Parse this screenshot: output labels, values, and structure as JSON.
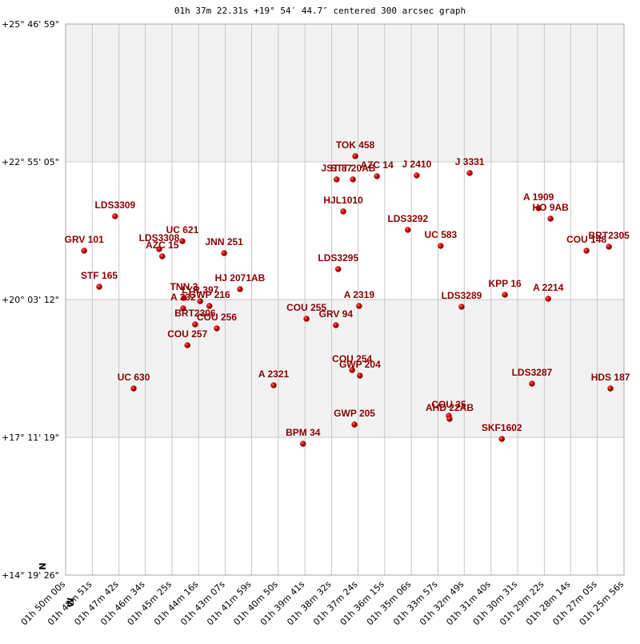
{
  "chart_data": {
    "type": "scatter",
    "title": "01h 37m 22.31s +19° 54′ 44.7″ centered 300 arcsec graph",
    "compass": [
      "N",
      "W"
    ],
    "color": "#c00000",
    "label_color": "#8b0000",
    "grid": true,
    "xlim": [
      6600,
      5156
    ],
    "ylim": [
      51566,
      92819
    ],
    "xticks": [
      {
        "value": 6600,
        "label": "01h 50m 00s"
      },
      {
        "value": 6531,
        "label": "01h 48m 51s"
      },
      {
        "value": 6462,
        "label": "01h 47m 42s"
      },
      {
        "value": 6394,
        "label": "01h 46m 34s"
      },
      {
        "value": 6325,
        "label": "01h 45m 25s"
      },
      {
        "value": 6256,
        "label": "01h 44m 16s"
      },
      {
        "value": 6187,
        "label": "01h 43m 07s"
      },
      {
        "value": 6119,
        "label": "01h 41m 59s"
      },
      {
        "value": 6050,
        "label": "01h 40m 50s"
      },
      {
        "value": 5981,
        "label": "01h 39m 41s"
      },
      {
        "value": 5912,
        "label": "01h 38m 32s"
      },
      {
        "value": 5844,
        "label": "01h 37m 24s"
      },
      {
        "value": 5775,
        "label": "01h 36m 15s"
      },
      {
        "value": 5706,
        "label": "01h 35m 06s"
      },
      {
        "value": 5637,
        "label": "01h 33m 57s"
      },
      {
        "value": 5569,
        "label": "01h 32m 49s"
      },
      {
        "value": 5500,
        "label": "01h 31m 40s"
      },
      {
        "value": 5431,
        "label": "01h 30m 31s"
      },
      {
        "value": 5362,
        "label": "01h 29m 22s"
      },
      {
        "value": 5294,
        "label": "01h 28m 14s"
      },
      {
        "value": 5225,
        "label": "01h 27m 05s"
      },
      {
        "value": 5156,
        "label": "01h 25m 56s"
      }
    ],
    "yticks": [
      {
        "value": 92819,
        "label": "+25° 46' 59\""
      },
      {
        "value": 82505,
        "label": "+22° 55' 05\""
      },
      {
        "value": 72192,
        "label": "+20° 03' 12\""
      },
      {
        "value": 61879,
        "label": "+17° 11' 19\""
      },
      {
        "value": 51566,
        "label": "+14° 19' 26\""
      }
    ],
    "labels": [
      "GRV 101",
      "LDS3309",
      "STF 165",
      "UC 630",
      "LDS3308",
      "AZC 15",
      "UC 621",
      "JNN 251",
      "TNN 3",
      "LYR 397",
      "GWP 216",
      "A 332",
      "BRT2306",
      "COU 256",
      "COU 257",
      "HJ 2071AB",
      "TOK 458",
      "JST 87",
      "STT 20AB",
      "AZC 14",
      "J 2410",
      "J 3331",
      "HJL1010",
      "LDS3292",
      "UC 583",
      "LDS3295",
      "A 2319",
      "COU 255",
      "GRV 94",
      "COU 254",
      "GWP 204",
      "A 2321",
      "GWP 205",
      "BPM 34",
      "COU 35",
      "AHD 22AB",
      "LDS3289",
      "KPP 16",
      "A 2214",
      "A 1909",
      "HO 9AB",
      "COU 148",
      "BRT2305",
      "LDS3287",
      "HDS 187",
      "SKF1602"
    ],
    "x": [
      6552,
      6472,
      6513,
      6424,
      6358,
      6350,
      6298,
      6190,
      6294,
      6252,
      6228,
      6296,
      6265,
      6209,
      6285,
      6149,
      5851,
      5899,
      5857,
      5795,
      5692,
      5555,
      5882,
      5715,
      5630,
      5895,
      5841,
      5977,
      5901,
      5859,
      5839,
      6062,
      5853,
      5986,
      5609,
      5607,
      5576,
      5464,
      5352,
      5377,
      5346,
      5253,
      5195,
      5394,
      5191,
      5472
    ],
    "y": [
      75850,
      78428,
      73152,
      65537,
      75970,
      75430,
      76570,
      75670,
      72312,
      72072,
      71713,
      71533,
      70334,
      70034,
      68775,
      72972,
      82925,
      81187,
      81187,
      81426,
      81486,
      81666,
      78788,
      77409,
      76210,
      74471,
      71713,
      70753,
      70274,
      66916,
      66496,
      65777,
      62838,
      61399,
      63498,
      63258,
      71653,
      72552,
      72252,
      79028,
      78248,
      75850,
      76150,
      65897,
      65537,
      61759
    ]
  }
}
